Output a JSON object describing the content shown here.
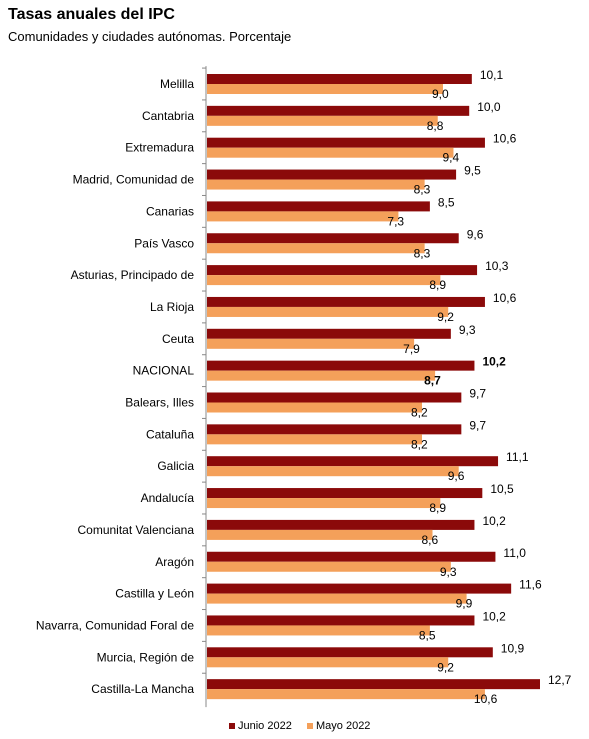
{
  "chart_data": {
    "type": "bar",
    "orientation": "horizontal",
    "title": "Tasas anuales del IPC",
    "subtitle": "Comunidades y ciudades autónomas. Porcentaje",
    "categories": [
      "Melilla",
      "Cantabria",
      "Extremadura",
      "Madrid, Comunidad de",
      "Canarias",
      "País Vasco",
      "Asturias, Principado de",
      "La Rioja",
      "Ceuta",
      "NACIONAL",
      "Balears, Illes",
      "Cataluña",
      "Galicia",
      "Andalucía",
      "Comunitat Valenciana",
      "Aragón",
      "Castilla y León",
      "Navarra, Comunidad Foral de",
      "Murcia, Región de",
      "Castilla-La Mancha"
    ],
    "series": [
      {
        "name": "Junio 2022",
        "color": "#8b0a0a",
        "values": [
          10.1,
          10.0,
          10.6,
          9.5,
          8.5,
          9.6,
          10.3,
          10.6,
          9.3,
          10.2,
          9.7,
          9.7,
          11.1,
          10.5,
          10.2,
          11.0,
          11.6,
          10.2,
          10.9,
          12.7
        ],
        "labels": [
          "10,1",
          "10,0",
          "10,6",
          "9,5",
          "8,5",
          "9,6",
          "10,3",
          "10,6",
          "9,3",
          "10,2",
          "9,7",
          "9,7",
          "11,1",
          "10,5",
          "10,2",
          "11,0",
          "11,6",
          "10,2",
          "10,9",
          "12,7"
        ]
      },
      {
        "name": "Mayo 2022",
        "color": "#f4a05a",
        "values": [
          9.0,
          8.8,
          9.4,
          8.3,
          7.3,
          8.3,
          8.9,
          9.2,
          7.9,
          8.7,
          8.2,
          8.2,
          9.6,
          8.9,
          8.6,
          9.3,
          9.9,
          8.5,
          9.2,
          10.6
        ],
        "labels": [
          "9,0",
          "8,8",
          "9,4",
          "8,3",
          "7,3",
          "8,3",
          "8,9",
          "9,2",
          "7,9",
          "8,7",
          "8,2",
          "8,2",
          "9,6",
          "8,9",
          "8,6",
          "9,3",
          "9,9",
          "8,5",
          "9,2",
          "10,6"
        ]
      }
    ],
    "highlight_category": "NACIONAL",
    "xlim": [
      0,
      12.7
    ],
    "grid": false,
    "legend_position": "bottom"
  }
}
